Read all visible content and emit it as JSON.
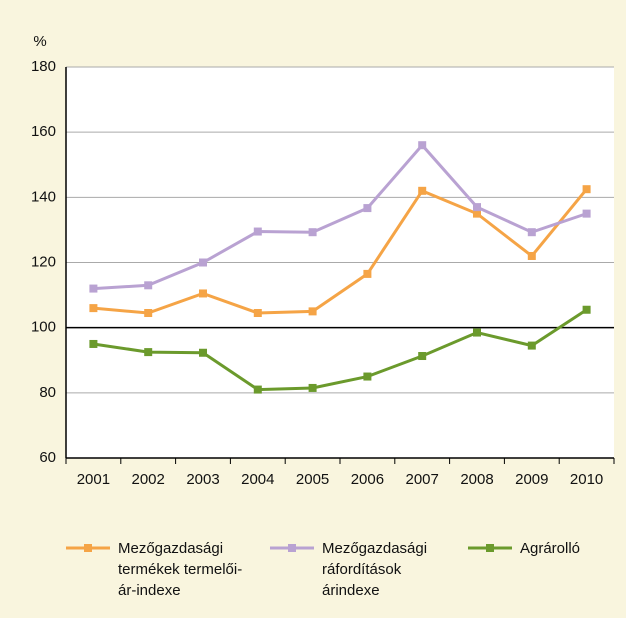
{
  "chart_data": {
    "type": "line",
    "ylabel": "%",
    "categories": [
      "2001",
      "2002",
      "2003",
      "2004",
      "2005",
      "2006",
      "2007",
      "2008",
      "2009",
      "2010"
    ],
    "series": [
      {
        "name": "Mezőgazdasági termékek termelői-ár-indexe",
        "color": "#f5a446",
        "values": [
          106,
          104.5,
          110.5,
          104.5,
          105,
          116.5,
          142,
          135,
          122,
          142.5
        ]
      },
      {
        "name": "Mezőgazdasági ráfordítások árindexe",
        "color": "#b9a2d2",
        "values": [
          112,
          113,
          120,
          129.5,
          129.3,
          136.7,
          156,
          137,
          129.3,
          135
        ]
      },
      {
        "name": "Agrárolló",
        "color": "#6b9a2c",
        "values": [
          95,
          92.5,
          92.3,
          81,
          81.5,
          85,
          91.3,
          98.5,
          94.5,
          105.5
        ]
      }
    ],
    "ylim": [
      60,
      180
    ],
    "yticks": [
      60,
      80,
      100,
      120,
      140,
      160,
      180
    ],
    "grid": true,
    "reference_line": 100
  }
}
